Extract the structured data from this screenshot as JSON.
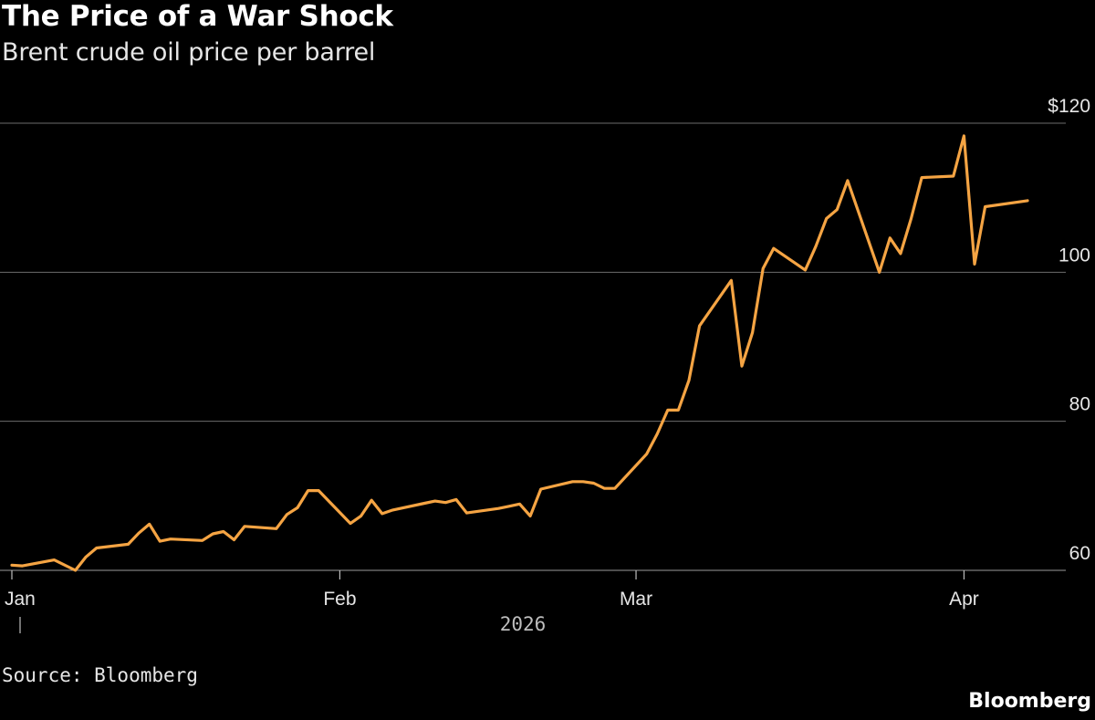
{
  "title": "The Price of a War Shock",
  "subtitle": "Brent crude oil price per barrel",
  "source": "Source: Bloomberg",
  "brand": "Bloomberg",
  "colors": {
    "background": "#000000",
    "line": "#f5a443",
    "grid": "#6b6b6b",
    "text": "#e6e6e6"
  },
  "chart_data": {
    "type": "line",
    "title": "The Price of a War Shock",
    "subtitle": "Brent crude oil price per barrel",
    "year_label": "2026",
    "y_axis": {
      "min": 60,
      "max": 120,
      "ticks": [
        60,
        80,
        100,
        120
      ],
      "tick_labels": [
        "60",
        "80",
        "100",
        "$120"
      ],
      "position": "right",
      "grid": true
    },
    "x_axis": {
      "min": "2026-01-01",
      "max": "2026-04-09",
      "ticks": [
        {
          "date": "2026-01-01",
          "label": "Jan"
        },
        {
          "date": "2026-02-01",
          "label": "Feb"
        },
        {
          "date": "2026-03-01",
          "label": "Mar"
        },
        {
          "date": "2026-04-01",
          "label": "Apr"
        }
      ]
    },
    "series": [
      {
        "points": [
          [
            "2026-01-01",
            60.7
          ],
          [
            "2026-01-02",
            60.6
          ],
          [
            "2026-01-05",
            61.4
          ],
          [
            "2026-01-07",
            60.0
          ],
          [
            "2026-01-08",
            61.8
          ],
          [
            "2026-01-09",
            63.0
          ],
          [
            "2026-01-12",
            63.5
          ],
          [
            "2026-01-13",
            65.0
          ],
          [
            "2026-01-14",
            66.2
          ],
          [
            "2026-01-15",
            63.9
          ],
          [
            "2026-01-16",
            64.2
          ],
          [
            "2026-01-19",
            64.0
          ],
          [
            "2026-01-20",
            64.9
          ],
          [
            "2026-01-21",
            65.2
          ],
          [
            "2026-01-22",
            64.1
          ],
          [
            "2026-01-23",
            65.9
          ],
          [
            "2026-01-26",
            65.6
          ],
          [
            "2026-01-27",
            67.5
          ],
          [
            "2026-01-28",
            68.4
          ],
          [
            "2026-01-29",
            70.7
          ],
          [
            "2026-01-30",
            70.7
          ],
          [
            "2026-02-02",
            66.3
          ],
          [
            "2026-02-03",
            67.3
          ],
          [
            "2026-02-04",
            69.4
          ],
          [
            "2026-02-05",
            67.6
          ],
          [
            "2026-02-06",
            68.1
          ],
          [
            "2026-02-09",
            69.0
          ],
          [
            "2026-02-10",
            69.3
          ],
          [
            "2026-02-11",
            69.1
          ],
          [
            "2026-02-12",
            69.5
          ],
          [
            "2026-02-13",
            67.7
          ],
          [
            "2026-02-16",
            68.3
          ],
          [
            "2026-02-17",
            68.6
          ],
          [
            "2026-02-18",
            68.9
          ],
          [
            "2026-02-19",
            67.3
          ],
          [
            "2026-02-20",
            70.9
          ],
          [
            "2026-02-23",
            71.9
          ],
          [
            "2026-02-24",
            71.9
          ],
          [
            "2026-02-25",
            71.7
          ],
          [
            "2026-02-26",
            71.0
          ],
          [
            "2026-02-27",
            71.0
          ],
          [
            "2026-03-02",
            75.6
          ],
          [
            "2026-03-03",
            78.3
          ],
          [
            "2026-03-04",
            81.5
          ],
          [
            "2026-03-05",
            81.5
          ],
          [
            "2026-03-06",
            85.5
          ],
          [
            "2026-03-07",
            92.8
          ],
          [
            "2026-03-10",
            98.9
          ],
          [
            "2026-03-11",
            87.4
          ],
          [
            "2026-03-12",
            91.9
          ],
          [
            "2026-03-13",
            100.5
          ],
          [
            "2026-03-14",
            103.2
          ],
          [
            "2026-03-17",
            100.3
          ],
          [
            "2026-03-18",
            103.5
          ],
          [
            "2026-03-19",
            107.2
          ],
          [
            "2026-03-20",
            108.4
          ],
          [
            "2026-03-21",
            112.3
          ],
          [
            "2026-03-24",
            100.0
          ],
          [
            "2026-03-25",
            104.6
          ],
          [
            "2026-03-26",
            102.5
          ],
          [
            "2026-03-27",
            107.2
          ],
          [
            "2026-03-28",
            112.7
          ],
          [
            "2026-03-31",
            112.9
          ],
          [
            "2026-04-01",
            118.3
          ],
          [
            "2026-04-02",
            101.1
          ],
          [
            "2026-04-03",
            108.8
          ],
          [
            "2026-04-07",
            109.6
          ]
        ]
      }
    ]
  }
}
